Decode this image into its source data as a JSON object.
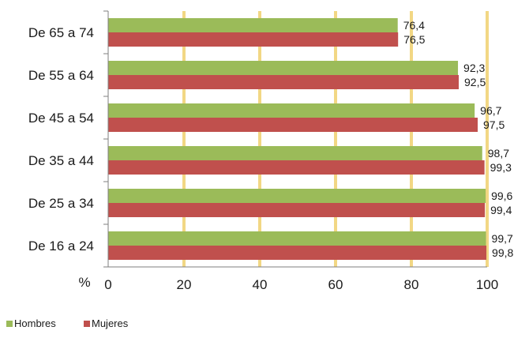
{
  "chart_data": {
    "type": "bar",
    "orientation": "horizontal",
    "categories": [
      "De 16 a 24",
      "De 25 a 34",
      "De 35 a 44",
      "De 45 a 54",
      "De 55 a 64",
      "De 65 a 74"
    ],
    "series": [
      {
        "name": "Hombres",
        "color": "#9bbb59",
        "values": [
          99.7,
          99.6,
          98.7,
          96.7,
          92.3,
          76.4
        ],
        "labels": [
          "99,7",
          "99,6",
          "98,7",
          "96,7",
          "92,3",
          "76,4"
        ]
      },
      {
        "name": "Mujeres",
        "color": "#c0504d",
        "values": [
          99.8,
          99.4,
          99.3,
          97.5,
          92.5,
          76.5
        ],
        "labels": [
          "99,8",
          "99,4",
          "99,3",
          "97,5",
          "92,5",
          "76,5"
        ]
      }
    ],
    "xlabel": "%",
    "ylabel": "",
    "xlim": [
      0,
      100
    ],
    "xticks": [
      0,
      20,
      40,
      60,
      80,
      100
    ],
    "xtick_labels": [
      "0",
      "20",
      "40",
      "60",
      "80",
      "100"
    ],
    "gridlines": "vertical",
    "gridline_color": "#f2d784",
    "legend_position": "bottom-left"
  }
}
